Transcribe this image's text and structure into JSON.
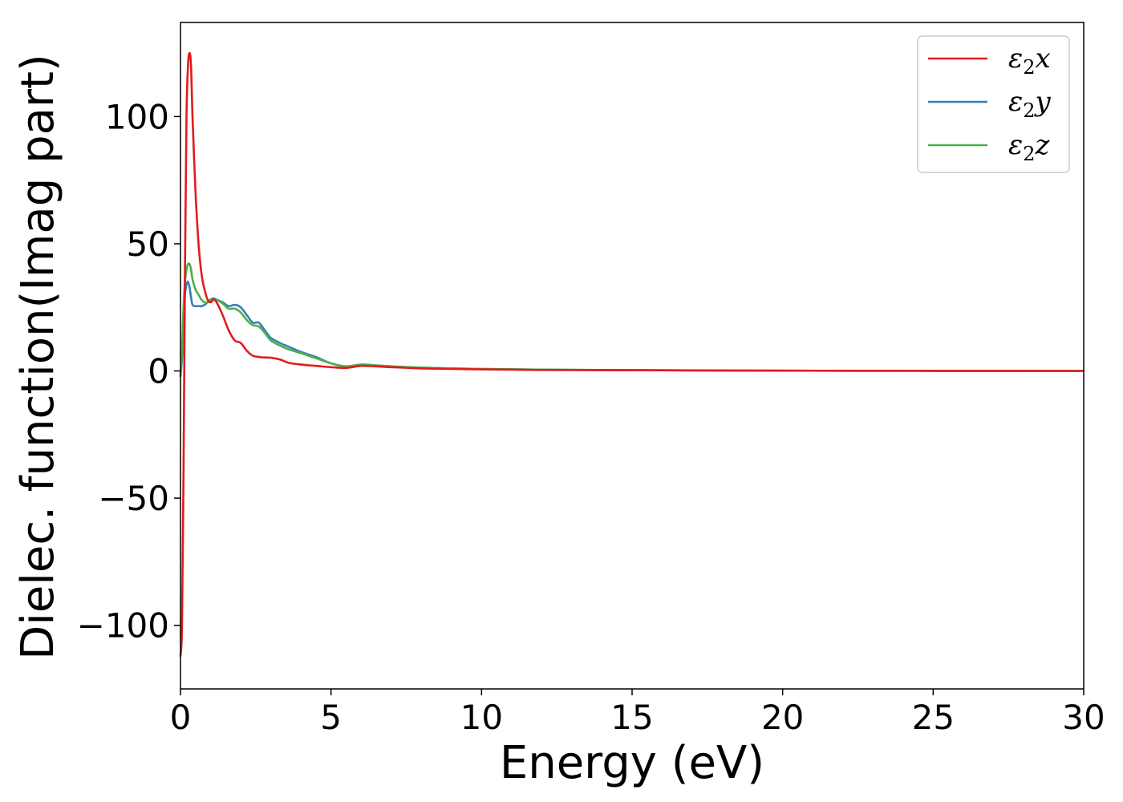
{
  "chart_data": {
    "type": "line",
    "xlabel": "Energy (eV)",
    "ylabel": "Dielec. function(Imag part)",
    "xlim": [
      0,
      30
    ],
    "ylim": [
      -125,
      137
    ],
    "xticks": [
      0,
      5,
      10,
      15,
      20,
      25,
      30
    ],
    "yticks": [
      -100,
      -50,
      0,
      50,
      100
    ],
    "xtick_labels": [
      "0",
      "5",
      "10",
      "15",
      "20",
      "25",
      "30"
    ],
    "ytick_labels": [
      "−100",
      "−50",
      "0",
      "50",
      "100"
    ],
    "grid": false,
    "legend_position": "top-right",
    "series": [
      {
        "name": "ε₂x",
        "legend_main": "ε",
        "legend_sub": "2",
        "legend_var": "x",
        "color": "#e41a1c",
        "x": [
          0.0,
          0.05,
          0.1,
          0.15,
          0.2,
          0.25,
          0.3,
          0.35,
          0.4,
          0.5,
          0.6,
          0.7,
          0.8,
          0.9,
          1.0,
          1.1,
          1.2,
          1.4,
          1.6,
          1.8,
          2.0,
          2.2,
          2.4,
          2.6,
          2.8,
          3.0,
          3.3,
          3.6,
          4.0,
          4.5,
          5.0,
          5.5,
          6.0,
          6.5,
          7.0,
          8.0,
          9.0,
          10.0,
          12.0,
          15.0,
          20.0,
          25.0,
          30.0
        ],
        "y": [
          -112,
          -100,
          -40,
          40,
          100,
          120,
          125,
          120,
          100,
          70,
          50,
          38,
          32,
          28,
          27,
          28,
          27,
          22,
          16,
          12,
          11,
          8,
          6,
          5.5,
          5.3,
          5.2,
          4.5,
          3.2,
          2.5,
          2.0,
          1.5,
          1.2,
          2.0,
          1.8,
          1.5,
          1.0,
          0.8,
          0.6,
          0.4,
          0.3,
          0.1,
          0.05,
          0.0
        ]
      },
      {
        "name": "ε₂y",
        "legend_main": "ε",
        "legend_sub": "2",
        "legend_var": "y",
        "color": "#377eb8",
        "x": [
          0.0,
          0.05,
          0.1,
          0.15,
          0.2,
          0.25,
          0.3,
          0.35,
          0.4,
          0.5,
          0.6,
          0.7,
          0.8,
          0.9,
          1.0,
          1.1,
          1.2,
          1.4,
          1.6,
          1.8,
          2.0,
          2.2,
          2.4,
          2.6,
          2.8,
          3.0,
          3.3,
          3.6,
          4.0,
          4.5,
          5.0,
          5.5,
          6.0,
          6.5,
          7.0,
          8.0,
          9.0,
          10.0,
          12.0,
          15.0,
          20.0,
          25.0,
          30.0
        ],
        "y": [
          -2,
          5,
          20,
          30,
          34,
          35,
          33,
          29,
          26,
          25.5,
          25.5,
          25.5,
          26,
          27,
          28,
          28.5,
          28,
          27,
          25.5,
          26,
          25,
          22,
          19,
          19,
          16,
          13,
          11,
          9.5,
          7.5,
          5.5,
          3.0,
          1.8,
          2.5,
          2.2,
          1.8,
          1.3,
          1.0,
          0.8,
          0.5,
          0.3,
          0.1,
          0.05,
          0.0
        ]
      },
      {
        "name": "ε₂z",
        "legend_main": "ε",
        "legend_sub": "2",
        "legend_var": "z",
        "color": "#4daf4a",
        "x": [
          0.0,
          0.05,
          0.1,
          0.15,
          0.2,
          0.25,
          0.3,
          0.35,
          0.4,
          0.5,
          0.6,
          0.7,
          0.8,
          0.9,
          1.0,
          1.1,
          1.2,
          1.4,
          1.6,
          1.8,
          2.0,
          2.2,
          2.4,
          2.6,
          2.8,
          3.0,
          3.3,
          3.6,
          4.0,
          4.5,
          5.0,
          5.5,
          6.0,
          6.5,
          7.0,
          8.0,
          9.0,
          10.0,
          12.0,
          15.0,
          20.0,
          25.0,
          30.0
        ],
        "y": [
          -2,
          8,
          25,
          35,
          40,
          42,
          42,
          40,
          36,
          32,
          30,
          28,
          27,
          27,
          27.5,
          28,
          28,
          26.5,
          24.5,
          24.5,
          23,
          20,
          18,
          17.5,
          15,
          12,
          10,
          8.5,
          7,
          5.0,
          3.0,
          1.8,
          2.5,
          2.2,
          1.8,
          1.3,
          1.0,
          0.8,
          0.5,
          0.3,
          0.1,
          0.05,
          0.0
        ]
      }
    ]
  }
}
